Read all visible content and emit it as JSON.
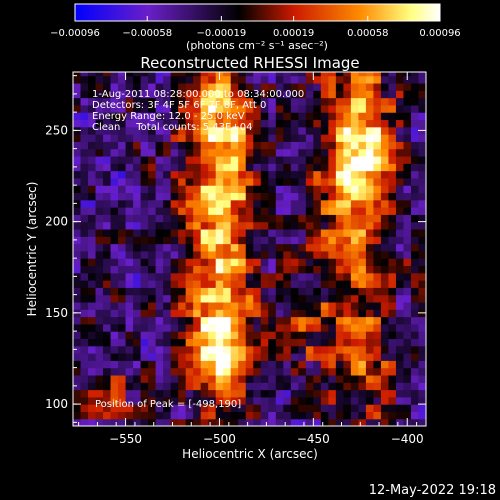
{
  "chart_data": {
    "type": "heatmap",
    "title": "Reconstructed RHESSI Image",
    "xlabel": "Heliocentric X (arcsec)",
    "ylabel": "Heliocentric Y (arcsec)",
    "xlim": [
      -578,
      -390
    ],
    "ylim": [
      88,
      282
    ],
    "x_ticks": [
      -550,
      -500,
      -450,
      -400
    ],
    "y_ticks": [
      100,
      150,
      200,
      250
    ],
    "colorbar": {
      "range": [
        -0.00096,
        0.00096
      ],
      "tick_values": [
        -0.00096,
        -0.00058,
        -0.00019,
        0.00019,
        0.00058,
        0.00096
      ],
      "tick_labels": [
        "-0.00096",
        "-0.00058",
        "-0.00019",
        "0.00019",
        "0.00058",
        "0.00096"
      ],
      "unit_label": "(photons cm⁻² s⁻¹ asec⁻²)",
      "colors": [
        "#0000ff",
        "#6a1fc8",
        "#000000",
        "#cc1a00",
        "#ff8a00",
        "#ffff80",
        "#ffffff"
      ]
    },
    "annotations": [
      "1-Aug-2011 08:28:00.000 to 08:34:00.000",
      "Detectors: 3F 4F 5F 6F 7F 8F, Att 0",
      "Energy Range: 12.0 - 25.0 keV",
      "Clean     Total counts: 5.43E+04"
    ],
    "peak_label": "Position of Peak = [-498,190]",
    "peak_position": [
      -498,
      190
    ],
    "sources": [
      {
        "name": "",
        "x": -500,
        "y": 205,
        "sx": 14,
        "sy": 55,
        "amplitude": 0.00096
      },
      {
        "name": "",
        "x": -500,
        "y": 130,
        "sx": 13,
        "sy": 22,
        "amplitude": 0.00082
      },
      {
        "name": "",
        "x": -500,
        "y": 260,
        "sx": 11,
        "sy": 18,
        "amplitude": 0.0005
      },
      {
        "name": "",
        "x": -425,
        "y": 245,
        "sx": 12,
        "sy": 30,
        "amplitude": 0.00085
      },
      {
        "name": "",
        "x": -430,
        "y": 190,
        "sx": 16,
        "sy": 55,
        "amplitude": 0.0006
      },
      {
        "name": "",
        "x": -420,
        "y": 120,
        "sx": 10,
        "sy": 20,
        "amplitude": 0.00045
      },
      {
        "name": "",
        "x": -560,
        "y": 105,
        "sx": 12,
        "sy": 12,
        "amplitude": 0.0004
      },
      {
        "name": "",
        "x": -455,
        "y": 140,
        "sx": 8,
        "sy": 12,
        "amplitude": 0.00035
      }
    ],
    "background_level": -0.00035
  },
  "footer": {
    "timestamp": "12-May-2022 19:18"
  }
}
